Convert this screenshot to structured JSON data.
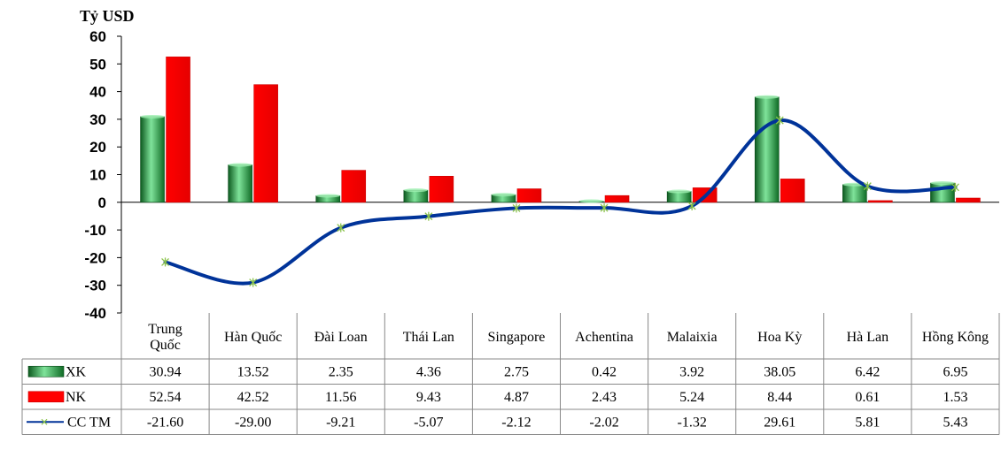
{
  "chart_data": {
    "type": "bar",
    "ylabel": "Tỷ USD",
    "ylim": [
      -40,
      60
    ],
    "yticks": [
      -40,
      -30,
      -20,
      -10,
      0,
      10,
      20,
      30,
      40,
      50,
      60
    ],
    "categories": [
      "Trung Quốc",
      "Hàn Quốc",
      "Đài Loan",
      "Thái Lan",
      "Singapore",
      "Achentina",
      "Malaixia",
      "Hoa Kỳ",
      "Hà Lan",
      "Hồng Kông"
    ],
    "series": [
      {
        "name": "XK",
        "kind": "bar",
        "color": "#1e9a3c",
        "values": [
          30.94,
          13.52,
          2.35,
          4.36,
          2.75,
          0.42,
          3.92,
          38.05,
          6.42,
          6.95
        ],
        "labels": [
          "30.94",
          "13.52",
          "2.35",
          "4.36",
          "2.75",
          "0.42",
          "3.92",
          "38.05",
          "6.42",
          "6.95"
        ]
      },
      {
        "name": "NK",
        "kind": "bar",
        "color": "#ff0000",
        "values": [
          52.54,
          42.52,
          11.56,
          9.43,
          4.87,
          2.43,
          5.24,
          8.44,
          0.61,
          1.53
        ],
        "labels": [
          "52.54",
          "42.52",
          "11.56",
          "9.43",
          "4.87",
          "2.43",
          "5.24",
          "8.44",
          "0.61",
          "1.53"
        ]
      },
      {
        "name": "CC TM",
        "kind": "line",
        "color": "#003399",
        "values": [
          -21.6,
          -29.0,
          -9.21,
          -5.07,
          -2.12,
          -2.02,
          -1.32,
          29.61,
          5.81,
          5.43
        ],
        "labels": [
          "-21.60",
          "-29.00",
          "-9.21",
          "-5.07",
          "-2.12",
          "-2.02",
          "-1.32",
          "29.61",
          "5.81",
          "5.43"
        ]
      }
    ],
    "grid": false,
    "legend": "data-table"
  }
}
